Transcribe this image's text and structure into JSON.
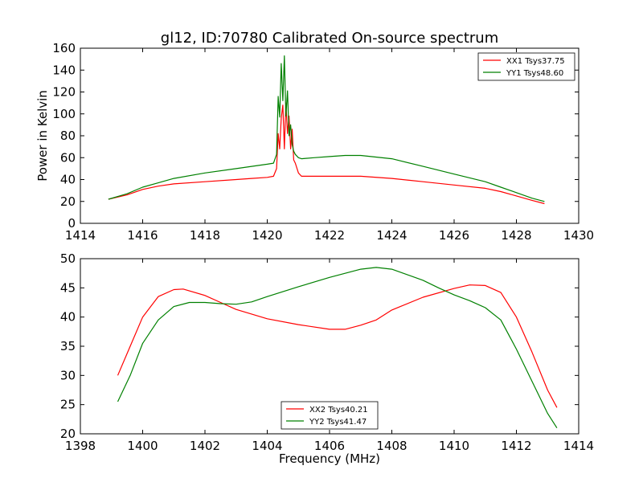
{
  "chart_data": [
    {
      "type": "line",
      "title": "gl12, ID:70780 Calibrated On-source spectrum",
      "xlabel": "",
      "ylabel": "Power in Kelvin",
      "xlim": [
        1414,
        1430
      ],
      "ylim": [
        0,
        160
      ],
      "xticks": [
        "1414",
        "1416",
        "1418",
        "1420",
        "1422",
        "1424",
        "1426",
        "1428",
        "1430"
      ],
      "yticks": [
        "0",
        "20",
        "40",
        "60",
        "80",
        "100",
        "120",
        "140",
        "160"
      ],
      "legend_position": "top-right",
      "series": [
        {
          "name": "XX1 Tsys37.75",
          "color": "#ff0000",
          "x": [
            1414.9,
            1415.5,
            1416.0,
            1416.5,
            1417.0,
            1418.0,
            1419.0,
            1419.5,
            1420.0,
            1420.2,
            1420.3,
            1420.35,
            1420.4,
            1420.45,
            1420.5,
            1420.55,
            1420.6,
            1420.65,
            1420.7,
            1420.75,
            1420.8,
            1420.85,
            1420.9,
            1421.0,
            1421.1,
            1421.5,
            1422.0,
            1423.0,
            1424.0,
            1425.0,
            1426.0,
            1427.0,
            1427.5,
            1428.0,
            1428.5,
            1428.9
          ],
          "y": [
            22,
            26,
            31,
            34,
            36,
            38,
            40,
            41,
            42,
            43,
            50,
            82,
            68,
            96,
            108,
            68,
            110,
            82,
            98,
            68,
            86,
            58,
            55,
            46,
            43,
            43,
            43,
            43,
            41,
            38,
            35,
            32,
            29,
            25,
            21,
            18
          ]
        },
        {
          "name": "YY1 Tsys48.60",
          "color": "#008000",
          "x": [
            1414.9,
            1415.5,
            1416.0,
            1416.5,
            1417.0,
            1418.0,
            1419.0,
            1419.5,
            1420.0,
            1420.2,
            1420.3,
            1420.35,
            1420.4,
            1420.45,
            1420.5,
            1420.55,
            1420.6,
            1420.65,
            1420.7,
            1420.75,
            1420.8,
            1420.85,
            1420.9,
            1421.0,
            1421.1,
            1421.5,
            1422.0,
            1422.5,
            1423.0,
            1424.0,
            1425.0,
            1426.0,
            1427.0,
            1427.5,
            1428.0,
            1428.5,
            1428.9
          ],
          "y": [
            22,
            27,
            33,
            37,
            41,
            46,
            50,
            52,
            54,
            55,
            63,
            116,
            97,
            146,
            112,
            153,
            98,
            121,
            80,
            90,
            72,
            66,
            63,
            60,
            59,
            60,
            61,
            62,
            62,
            59,
            52,
            45,
            38,
            33,
            28,
            23,
            20
          ]
        }
      ]
    },
    {
      "type": "line",
      "title": "",
      "xlabel": "Frequency (MHz)",
      "ylabel": "",
      "xlim": [
        1398,
        1414
      ],
      "ylim": [
        20,
        50
      ],
      "xticks": [
        "1398",
        "1400",
        "1402",
        "1404",
        "1406",
        "1408",
        "1410",
        "1412",
        "1414"
      ],
      "yticks": [
        "20",
        "25",
        "30",
        "35",
        "40",
        "45",
        "50"
      ],
      "legend_position": "bottom-center",
      "series": [
        {
          "name": "XX2 Tsys40.21",
          "color": "#ff0000",
          "x": [
            1399.2,
            1399.6,
            1400.0,
            1400.5,
            1401.0,
            1401.3,
            1402.0,
            1402.5,
            1403.0,
            1404.0,
            1405.0,
            1406.0,
            1406.5,
            1407.0,
            1407.5,
            1408.0,
            1409.0,
            1410.0,
            1410.5,
            1411.0,
            1411.5,
            1412.0,
            1412.5,
            1413.0,
            1413.3
          ],
          "y": [
            30,
            35,
            40,
            43.5,
            44.7,
            44.8,
            43.7,
            42.5,
            41.3,
            39.7,
            38.7,
            37.9,
            37.9,
            38.6,
            39.5,
            41.2,
            43.4,
            44.9,
            45.5,
            45.4,
            44.2,
            40,
            34,
            27.5,
            24.5
          ]
        },
        {
          "name": "YY2 Tsys41.47",
          "color": "#008000",
          "x": [
            1399.2,
            1399.6,
            1400.0,
            1400.5,
            1401.0,
            1401.5,
            1402.0,
            1402.5,
            1403.0,
            1403.5,
            1404.0,
            1405.0,
            1406.0,
            1407.0,
            1407.5,
            1408.0,
            1409.0,
            1409.5,
            1410.0,
            1410.5,
            1411.0,
            1411.5,
            1412.0,
            1412.5,
            1413.0,
            1413.3
          ],
          "y": [
            25.5,
            30,
            35.5,
            39.5,
            41.8,
            42.5,
            42.5,
            42.3,
            42.2,
            42.6,
            43.5,
            45.2,
            46.8,
            48.2,
            48.5,
            48.2,
            46.3,
            45,
            43.8,
            42.8,
            41.6,
            39.5,
            34.5,
            29,
            23.5,
            21
          ]
        }
      ]
    }
  ]
}
